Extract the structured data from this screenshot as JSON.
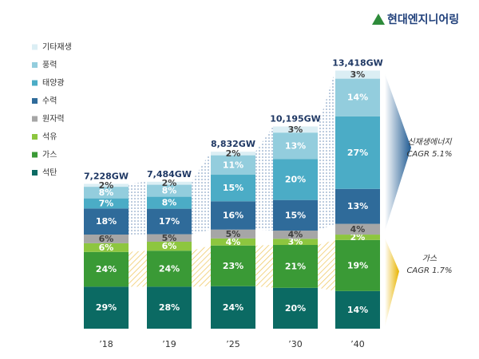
{
  "chart_data": {
    "type": "stacked-bar",
    "logo": "현대엔지니어링",
    "categories": [
      "’18",
      "’19",
      "’25",
      "’30",
      "’40"
    ],
    "totals": {
      "values": [
        7228,
        7484,
        8832,
        10195,
        13418
      ],
      "value_labels": [
        "7,228GW",
        "7,484GW",
        "8,832GW",
        "10,195GW",
        "13,418GW"
      ]
    },
    "series": [
      {
        "name": "석탄",
        "color": "#0b6a63",
        "text": "#ffffff",
        "values": [
          29,
          28,
          24,
          20,
          14
        ],
        "value_labels": [
          "29%",
          "28%",
          "24%",
          "20%",
          "14%"
        ]
      },
      {
        "name": "가스",
        "color": "#3a9a36",
        "text": "#ffffff",
        "values": [
          24,
          24,
          23,
          21,
          19
        ],
        "value_labels": [
          "24%",
          "24%",
          "23%",
          "21%",
          "19%"
        ]
      },
      {
        "name": "석유",
        "color": "#8dc63f",
        "text": "#ffffff",
        "values": [
          6,
          6,
          4,
          3,
          2
        ],
        "value_labels": [
          "6%",
          "6%",
          "4%",
          "3%",
          "2%"
        ]
      },
      {
        "name": "원자력",
        "color": "#a6a6a6",
        "text": "#404040",
        "values": [
          6,
          5,
          5,
          4,
          4
        ],
        "value_labels": [
          "6%",
          "5%",
          "5%",
          "4%",
          "4%"
        ]
      },
      {
        "name": "수력",
        "color": "#2f6b9a",
        "text": "#ffffff",
        "values": [
          18,
          17,
          16,
          15,
          13
        ],
        "value_labels": [
          "18%",
          "17%",
          "16%",
          "15%",
          "13%"
        ]
      },
      {
        "name": "태양광",
        "color": "#4bacc6",
        "text": "#ffffff",
        "values": [
          7,
          8,
          15,
          20,
          27
        ],
        "value_labels": [
          "7%",
          "8%",
          "15%",
          "20%",
          "27%"
        ]
      },
      {
        "name": "풍력",
        "color": "#93cddd",
        "text": "#ffffff",
        "values": [
          8,
          8,
          11,
          13,
          14
        ],
        "value_labels": [
          "8%",
          "8%",
          "11%",
          "13%",
          "14%"
        ]
      },
      {
        "name": "기타재생",
        "color": "#dbeef4",
        "text": "#404040",
        "values": [
          2,
          2,
          2,
          3,
          3
        ],
        "value_labels": [
          "2%",
          "2%",
          "2%",
          "3%",
          "3%"
        ]
      }
    ],
    "annotations": [
      {
        "title": "신재생에너지",
        "text": "CAGR 5.1%"
      },
      {
        "title": "가스",
        "text": "CAGR 1.7%"
      }
    ]
  }
}
